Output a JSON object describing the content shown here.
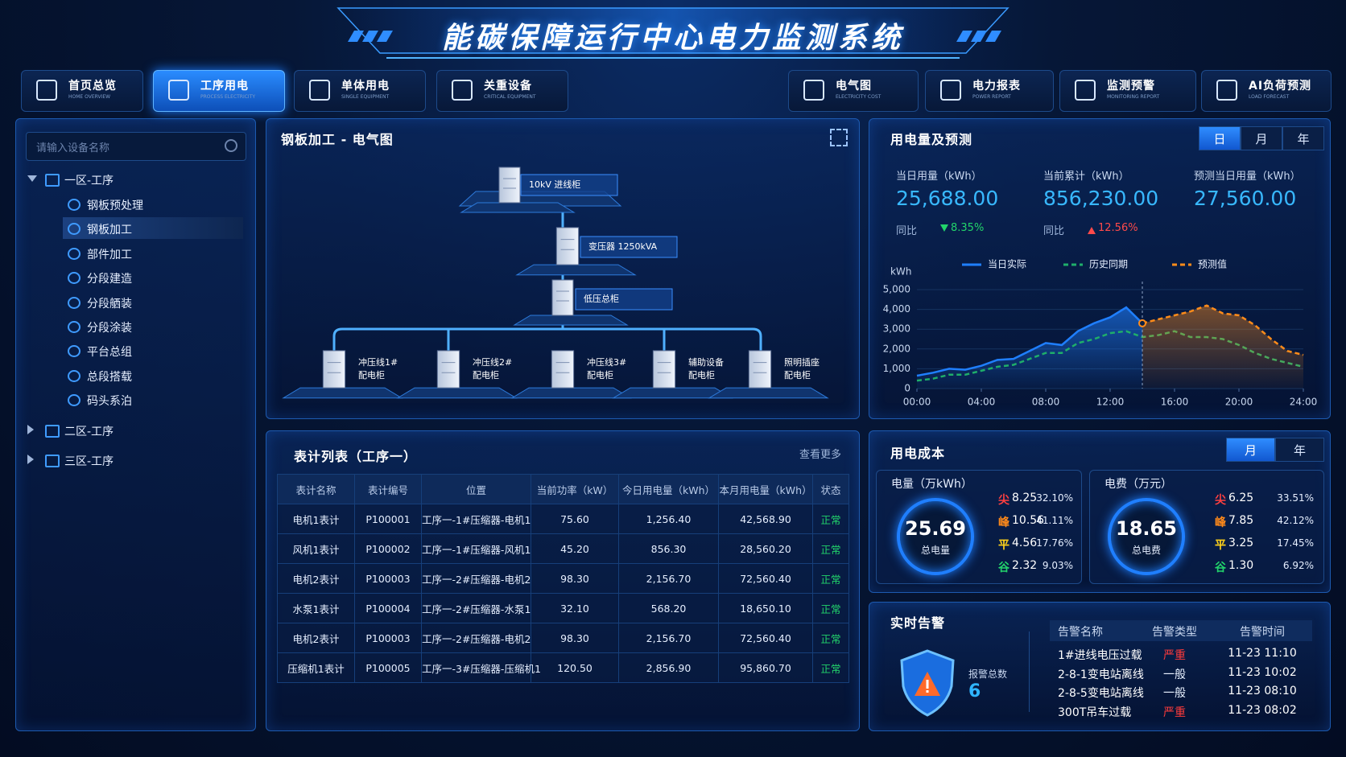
{
  "header": {
    "title": "能碳保障运行中心电力监测系统"
  },
  "nav": [
    {
      "label": "首页总览",
      "sub": "HOME OVERVIEW"
    },
    {
      "label": "工序用电",
      "sub": "PROCESS ELECTRICITY",
      "active": true
    },
    {
      "label": "单体用电",
      "sub": "SINGLE EQUIPMENT"
    },
    {
      "label": "关重设备",
      "sub": "CRITICAL EQUIPMENT"
    },
    {
      "label": "电气图",
      "sub": "ELECTRICITY COST"
    },
    {
      "label": "电力报表",
      "sub": "POWER REPORT"
    },
    {
      "label": "监测预警",
      "sub": "MONITORING REPORT"
    },
    {
      "label": "AI负荷预测",
      "sub": "LOAD FORECAST"
    }
  ],
  "sidebar": {
    "search_placeholder": "请输入设备名称",
    "tree": [
      {
        "label": "一区-工序",
        "children": [
          {
            "label": "钢板预处理"
          },
          {
            "label": "钢板加工",
            "selected": true
          },
          {
            "label": "部件加工"
          },
          {
            "label": "分段建造"
          },
          {
            "label": "分段舾装"
          },
          {
            "label": "分段涂装"
          },
          {
            "label": "平台总组"
          },
          {
            "label": "总段搭载"
          },
          {
            "label": "码头系泊"
          }
        ]
      },
      {
        "label": "二区-工序"
      },
      {
        "label": "三区-工序"
      }
    ]
  },
  "diagram": {
    "title": "钢板加工 - 电气图",
    "incoming": "10kV 进线柜",
    "transformer": "变压器 1250kVA",
    "main_panel": "低压总柜",
    "feeders": [
      {
        "name": "冲压线1#",
        "sub": "配电柜"
      },
      {
        "name": "冲压线2#",
        "sub": "配电柜"
      },
      {
        "name": "冲压线3#",
        "sub": "配电柜"
      },
      {
        "name": "辅助设备",
        "sub": "配电柜"
      },
      {
        "name": "照明插座",
        "sub": "配电柜"
      }
    ]
  },
  "meter_table": {
    "title": "表计列表（工序一）",
    "more": "查看更多",
    "columns": [
      "表计名称",
      "表计编号",
      "位置",
      "当前功率（kW）",
      "今日用电量（kWh）",
      "本月用电量（kWh）",
      "状态"
    ],
    "rows": [
      [
        "电机1表计",
        "P100001",
        "工序一-1#压缩器-电机1",
        "75.60",
        "1,256.40",
        "42,568.90",
        "正常"
      ],
      [
        "风机1表计",
        "P100002",
        "工序一-1#压缩器-风机1",
        "45.20",
        "856.30",
        "28,560.20",
        "正常"
      ],
      [
        "电机2表计",
        "P100003",
        "工序一-2#压缩器-电机2",
        "98.30",
        "2,156.70",
        "72,560.40",
        "正常"
      ],
      [
        "水泵1表计",
        "P100004",
        "工序一-2#压缩器-水泵1",
        "32.10",
        "568.20",
        "18,650.10",
        "正常"
      ],
      [
        "电机2表计",
        "P100003",
        "工序一-2#压缩器-电机2",
        "98.30",
        "2,156.70",
        "72,560.40",
        "正常"
      ],
      [
        "压缩机1表计",
        "P100005",
        "工序一-3#压缩器-压缩机1",
        "120.50",
        "2,856.90",
        "95,860.70",
        "正常"
      ]
    ]
  },
  "usage": {
    "title": "用电量及预测",
    "tabs": [
      {
        "label": "日",
        "active": true
      },
      {
        "label": "月"
      },
      {
        "label": "年"
      }
    ],
    "stats": [
      {
        "label": "当日用量（kWh）",
        "value": "25,688.00",
        "compare_label": "同比",
        "compare": "8.35%",
        "trend": "down",
        "color": "#22d46b"
      },
      {
        "label": "当前累计（kWh）",
        "value": "856,230.00",
        "compare_label": "同比",
        "compare": "12.56%",
        "trend": "up",
        "color": "#ff4a4a"
      },
      {
        "label": "预测当日用量（kWh）",
        "value": "27,560.00"
      }
    ]
  },
  "chart_data": {
    "type": "line",
    "y_label": "kWh",
    "x": [
      0,
      1,
      2,
      3,
      4,
      5,
      6,
      7,
      8,
      9,
      10,
      11,
      12,
      13,
      14,
      15,
      16,
      17,
      18,
      19,
      20,
      21,
      22,
      23,
      24
    ],
    "xlim": [
      0,
      24
    ],
    "xticks": [
      {
        "value": 0,
        "label": "00:00"
      },
      {
        "value": 4,
        "label": "04:00"
      },
      {
        "value": 8,
        "label": "08:00"
      },
      {
        "value": 12,
        "label": "12:00"
      },
      {
        "value": 16,
        "label": "16:00"
      },
      {
        "value": 20,
        "label": "20:00"
      },
      {
        "value": 24,
        "label": "24:00"
      }
    ],
    "ylim": [
      0,
      5000
    ],
    "yticks": [
      0,
      {
        "value": 1000,
        "label": "1,000"
      },
      {
        "value": 2000,
        "label": "2,000"
      },
      {
        "value": 3000,
        "label": "3,000"
      },
      {
        "value": 4000,
        "label": "4,000"
      },
      {
        "value": 5000,
        "label": "5,000"
      }
    ],
    "series": [
      {
        "name": "当日实际",
        "color": "#1f7fff",
        "dash": false,
        "area": true,
        "values": [
          650,
          800,
          1000,
          950,
          1150,
          1450,
          1500,
          1900,
          2300,
          2200,
          2900,
          3300,
          3600,
          4100,
          3300,
          null,
          null,
          null,
          null,
          null,
          null,
          null,
          null,
          null,
          null
        ]
      },
      {
        "name": "历史同期",
        "color": "#1fae6a",
        "dash": true,
        "area": false,
        "values": [
          400,
          500,
          700,
          700,
          900,
          1100,
          1200,
          1500,
          1800,
          1800,
          2300,
          2500,
          2800,
          2900,
          2600,
          2700,
          2900,
          2600,
          2600,
          2500,
          2200,
          1800,
          1500,
          1300,
          1100
        ]
      },
      {
        "name": "预测值",
        "color": "#ff8c1a",
        "dash": true,
        "area": true,
        "values": [
          null,
          null,
          null,
          null,
          null,
          null,
          null,
          null,
          null,
          null,
          null,
          null,
          null,
          null,
          3300,
          3500,
          3700,
          3900,
          4200,
          3800,
          3700,
          3200,
          2500,
          1900,
          1700
        ]
      }
    ]
  },
  "cost": {
    "title": "用电成本",
    "tabs": [
      {
        "label": "月",
        "active": true
      },
      {
        "label": "年"
      }
    ],
    "cards": [
      {
        "title": "电量（万kWh）",
        "total": "25.69",
        "total_label": "总电量",
        "rows": [
          {
            "tier": "尖",
            "value": "8.25",
            "share": "32.10%",
            "color": "#ff4040"
          },
          {
            "tier": "峰",
            "value": "10.56",
            "share": "41.11%",
            "color": "#ff8a1a"
          },
          {
            "tier": "平",
            "value": "4.56",
            "share": "17.76%",
            "color": "#ffd21a"
          },
          {
            "tier": "谷",
            "value": "2.32",
            "share": "9.03%",
            "color": "#22d46b"
          }
        ]
      },
      {
        "title": "电费（万元）",
        "total": "18.65",
        "total_label": "总电费",
        "rows": [
          {
            "tier": "尖",
            "value": "6.25",
            "share": "33.51%",
            "color": "#ff4040"
          },
          {
            "tier": "峰",
            "value": "7.85",
            "share": "42.12%",
            "color": "#ff8a1a"
          },
          {
            "tier": "平",
            "value": "3.25",
            "share": "17.45%",
            "color": "#ffd21a"
          },
          {
            "tier": "谷",
            "value": "1.30",
            "share": "6.92%",
            "color": "#22d46b"
          }
        ]
      }
    ]
  },
  "alarm": {
    "title": "实时告警",
    "total_label": "报警总数",
    "total": "6",
    "columns": [
      "告警名称",
      "告警类型",
      "告警时间"
    ],
    "rows": [
      {
        "name": "1#进线电压过载",
        "type": "严重",
        "time": "11-23 11:10",
        "type_color": "#ff3b3b"
      },
      {
        "name": "2-8-1变电站离线",
        "type": "一般",
        "time": "11-23 10:02",
        "type_color": "#e8f1ff"
      },
      {
        "name": "2-8-5变电站离线",
        "type": "一般",
        "time": "11-23 08:10",
        "type_color": "#e8f1ff"
      },
      {
        "name": "300T吊车过载",
        "type": "严重",
        "time": "11-23 08:02",
        "type_color": "#ff3b3b"
      }
    ]
  }
}
